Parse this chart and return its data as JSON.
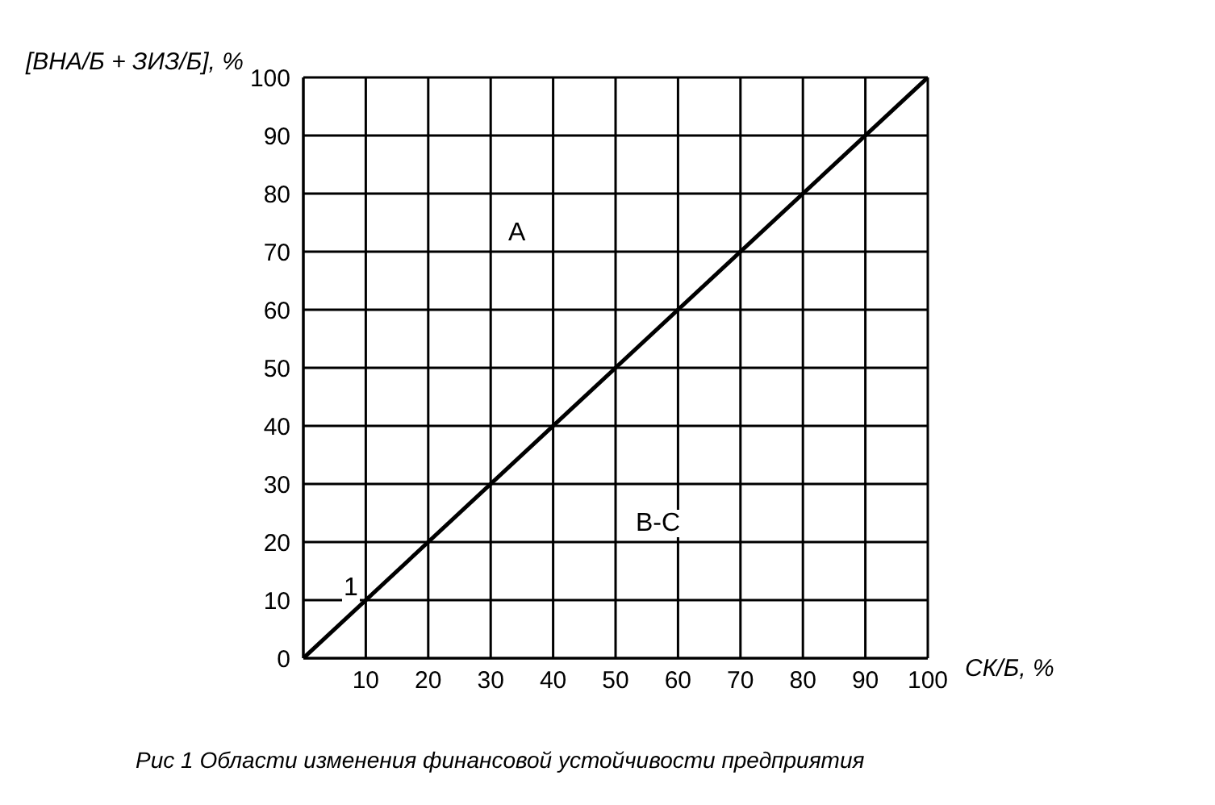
{
  "chart_data": {
    "type": "line",
    "xlabel": "СК/Б, %",
    "ylabel": "[ВНА/Б + ЗИЗ/Б], %",
    "x": [
      0,
      100
    ],
    "series": [
      {
        "color": "#000000",
        "values": [
          0,
          100
        ]
      }
    ],
    "xlim": [
      0,
      100
    ],
    "ylim": [
      0,
      100
    ],
    "xticks": [
      {
        "value": 0,
        "label": null
      },
      10,
      20,
      30,
      40,
      50,
      60,
      70,
      80,
      90,
      100
    ],
    "yticks": [
      0,
      10,
      20,
      30,
      40,
      50,
      60,
      70,
      80,
      90,
      100
    ],
    "grid": true,
    "marker": "none",
    "line_style": "solid",
    "annotations": [
      "A",
      "B-C",
      "1",
      "Рис 1 Области изменения финансовой устойчивости предприятия"
    ]
  }
}
